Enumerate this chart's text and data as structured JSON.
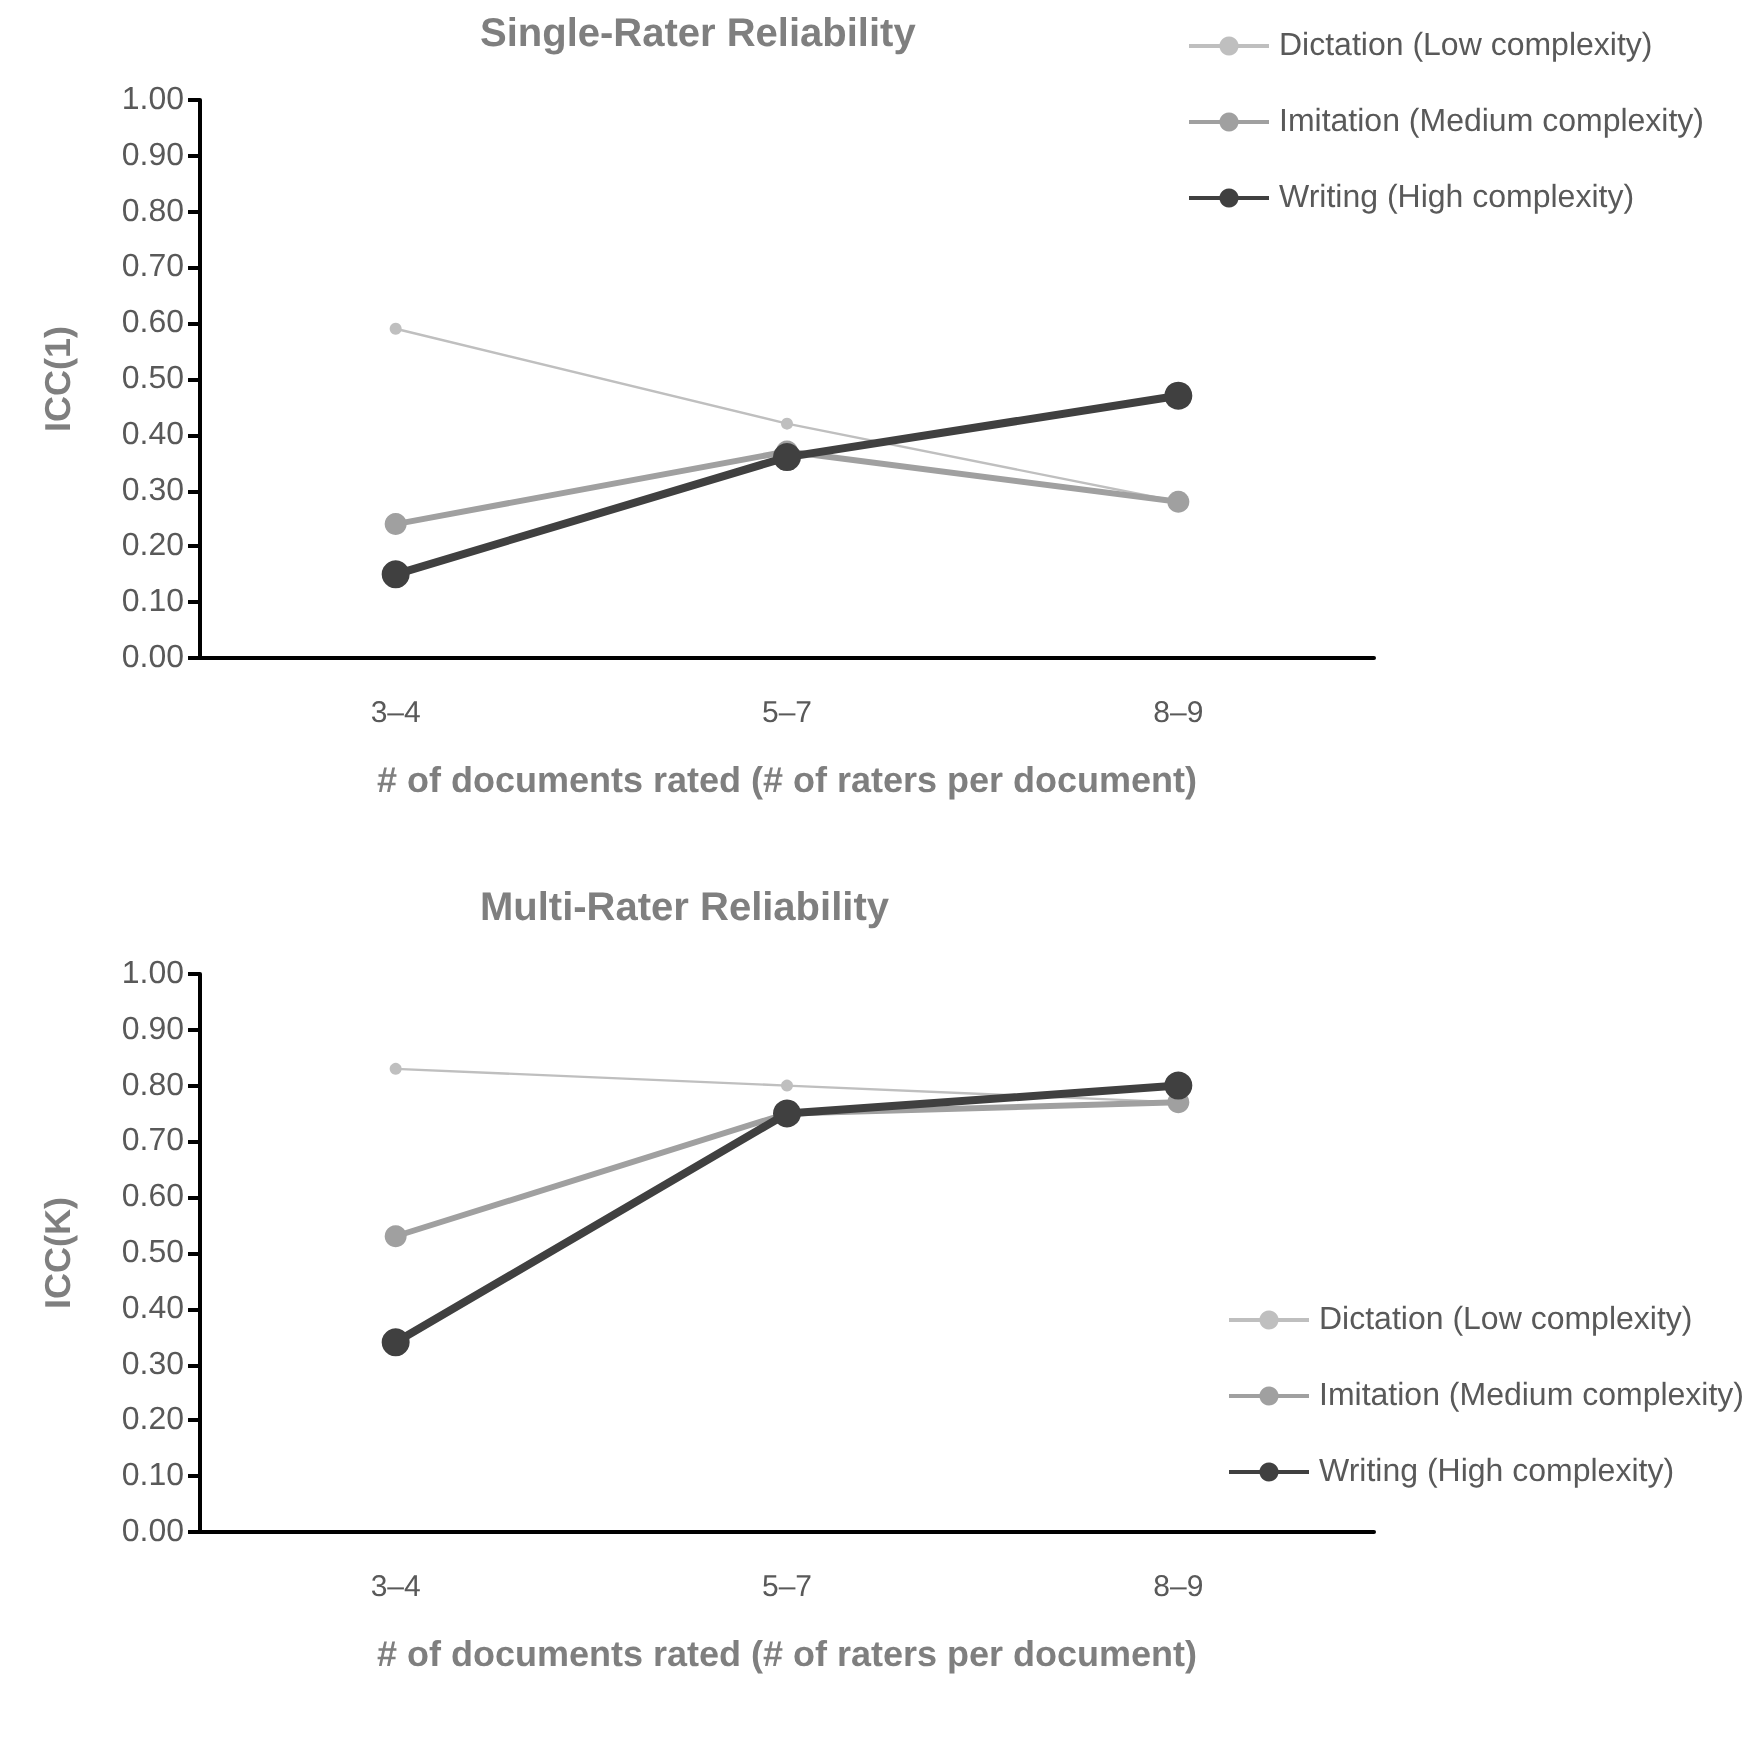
{
  "chart_data": [
    {
      "type": "line",
      "title": "Single-Rater Reliability",
      "xlabel": "# of documents rated (# of raters per document)",
      "ylabel": "ICC(1)",
      "categories": [
        "3–4",
        "5–7",
        "8–9"
      ],
      "series": [
        {
          "name": "Dictation (Low complexity)",
          "color": "#bfbfbf",
          "values": [
            0.59,
            0.42,
            0.28
          ]
        },
        {
          "name": "Imitation (Medium complexity)",
          "color": "#a0a0a0",
          "values": [
            0.24,
            0.37,
            0.28
          ]
        },
        {
          "name": "Writing (High complexity)",
          "color": "#404040",
          "values": [
            0.15,
            0.36,
            0.47
          ]
        }
      ],
      "ylim": [
        0,
        1
      ],
      "yticks": [
        {
          "value": 0,
          "label": "0.00"
        },
        {
          "value": 0.1,
          "label": "0.10"
        },
        {
          "value": 0.2,
          "label": "0.20"
        },
        {
          "value": 0.3,
          "label": "0.30"
        },
        {
          "value": 0.4,
          "label": "0.40"
        },
        {
          "value": 0.5,
          "label": "0.50"
        },
        {
          "value": 0.6,
          "label": "0.60"
        },
        {
          "value": 0.7,
          "label": "0.70"
        },
        {
          "value": 0.8,
          "label": "0.80"
        },
        {
          "value": 0.9,
          "label": "0.90"
        },
        {
          "value": 1,
          "label": "1.00"
        }
      ],
      "grid": false,
      "legend": "top right",
      "marker": "circle"
    },
    {
      "type": "line",
      "title": "Multi-Rater Reliability",
      "xlabel": "# of documents rated (# of raters per document)",
      "ylabel": "ICC(K)",
      "categories": [
        "3–4",
        "5–7",
        "8–9"
      ],
      "series": [
        {
          "name": "Dictation (Low complexity)",
          "color": "#bfbfbf",
          "values": [
            0.83,
            0.8,
            0.77
          ]
        },
        {
          "name": "Imitation (Medium complexity)",
          "color": "#a0a0a0",
          "values": [
            0.53,
            0.75,
            0.77
          ]
        },
        {
          "name": "Writing (High complexity)",
          "color": "#404040",
          "values": [
            0.34,
            0.75,
            0.8
          ]
        }
      ],
      "ylim": [
        0,
        1
      ],
      "yticks": [
        {
          "value": 0,
          "label": "0.00"
        },
        {
          "value": 0.1,
          "label": "0.10"
        },
        {
          "value": 0.2,
          "label": "0.20"
        },
        {
          "value": 0.3,
          "label": "0.30"
        },
        {
          "value": 0.4,
          "label": "0.40"
        },
        {
          "value": 0.5,
          "label": "0.50"
        },
        {
          "value": 0.6,
          "label": "0.60"
        },
        {
          "value": 0.7,
          "label": "0.70"
        },
        {
          "value": 0.8,
          "label": "0.80"
        },
        {
          "value": 0.9,
          "label": "0.90"
        },
        {
          "value": 1,
          "label": "1.00"
        }
      ],
      "grid": false,
      "legend": "right",
      "marker": "circle"
    }
  ]
}
